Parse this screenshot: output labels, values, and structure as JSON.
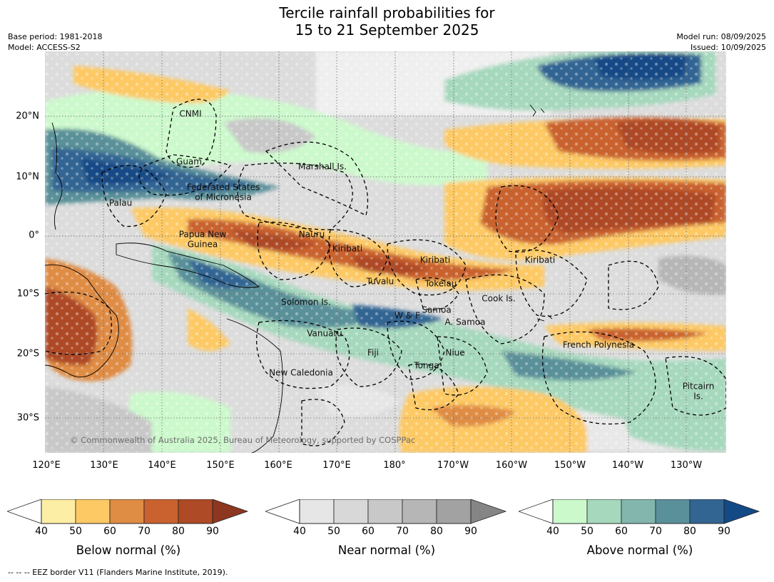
{
  "title_line1": "Tercile rainfall probabilities for",
  "title_line2": "15 to 21 September 2025",
  "base_period": "Base period: 1981-2018",
  "model": "Model: ACCESS-S2",
  "model_run": "Model run: 08/09/2025",
  "issued": "Issued: 10/09/2025",
  "lon_ticks": [
    "120°E",
    "130°E",
    "140°E",
    "150°E",
    "160°E",
    "170°E",
    "180°",
    "170°W",
    "160°W",
    "150°W",
    "140°W",
    "130°W"
  ],
  "lat_ticks": [
    "20°N",
    "10°N",
    "0°",
    "10°S",
    "20°S",
    "30°S"
  ],
  "places": {
    "cnmi": "CNMI",
    "guam": "Guam",
    "marshall": "Marshall Is.",
    "fsm1": "Federated States",
    "fsm2": "of Micronesia",
    "palau": "Palau",
    "png1": "Papua New",
    "png2": "Guinea",
    "nauru": "Nauru",
    "kiribati_w": "Kiribati",
    "kiribati_c": "Kiribati",
    "kiribati_e": "Kiribati",
    "tuvalu": "Tuvalu",
    "tokelau": "Tokelau",
    "cook": "Cook Is.",
    "solomon": "Solomon Is.",
    "wf": "W & F",
    "samoa": "Samoa",
    "asamoa": "A. Samoa",
    "vanuatu": "Vanuatu",
    "fiji": "Fiji",
    "niue": "Niue",
    "tonga": "Tonga",
    "french_polynesia": "French Polynesia",
    "new_caledonia": "New Caledonia",
    "pitcairn1": "Pitcairn",
    "pitcairn2": "Is."
  },
  "copyright": "© Commonwealth of Australia 2025, Bureau of Meteorology, supported by COSPPac",
  "colorbars": [
    {
      "label": "Below normal (%)",
      "ticks": [
        "40",
        "50",
        "60",
        "70",
        "80",
        "90"
      ],
      "colors": [
        "#fdeea5",
        "#fdc965",
        "#df8c45",
        "#c9622f",
        "#ae4a25",
        "#8e3720"
      ]
    },
    {
      "label": "Near normal (%)",
      "ticks": [
        "40",
        "50",
        "60",
        "70",
        "80",
        "90"
      ],
      "colors": [
        "#e6e6e6",
        "#d8d8d8",
        "#c8c8c8",
        "#b6b6b6",
        "#a2a2a2",
        "#858585"
      ]
    },
    {
      "label": "Above normal (%)",
      "ticks": [
        "40",
        "50",
        "60",
        "70",
        "80",
        "90"
      ],
      "colors": [
        "#ccf9cc",
        "#a6d8bd",
        "#83b6ad",
        "#5a9099",
        "#336593",
        "#124a86"
      ]
    }
  ],
  "footnote": "--  --  -- EEZ border V11 (Flanders Marine Institute, 2019)."
}
